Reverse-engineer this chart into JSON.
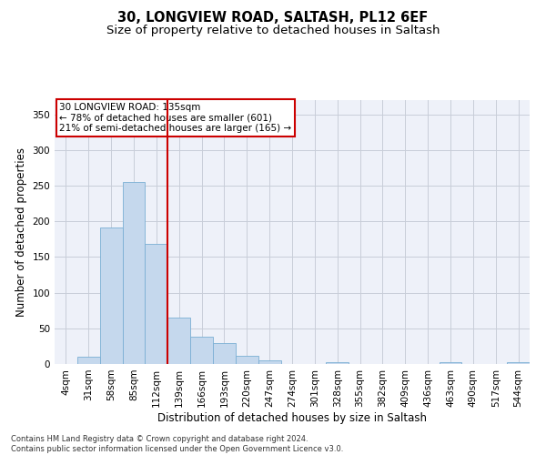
{
  "title_line1": "30, LONGVIEW ROAD, SALTASH, PL12 6EF",
  "title_line2": "Size of property relative to detached houses in Saltash",
  "xlabel": "Distribution of detached houses by size in Saltash",
  "ylabel": "Number of detached properties",
  "footnote": "Contains HM Land Registry data © Crown copyright and database right 2024.\nContains public sector information licensed under the Open Government Licence v3.0.",
  "bar_labels": [
    "4sqm",
    "31sqm",
    "58sqm",
    "85sqm",
    "112sqm",
    "139sqm",
    "166sqm",
    "193sqm",
    "220sqm",
    "247sqm",
    "274sqm",
    "301sqm",
    "328sqm",
    "355sqm",
    "382sqm",
    "409sqm",
    "436sqm",
    "463sqm",
    "490sqm",
    "517sqm",
    "544sqm"
  ],
  "bar_heights": [
    0,
    10,
    192,
    255,
    168,
    65,
    38,
    29,
    11,
    5,
    0,
    0,
    3,
    0,
    0,
    0,
    0,
    2,
    0,
    0,
    3
  ],
  "bar_color": "#c5d8ed",
  "bar_edge_color": "#7aafd4",
  "vline_color": "#cc0000",
  "annotation_text": "30 LONGVIEW ROAD: 135sqm\n← 78% of detached houses are smaller (601)\n21% of semi-detached houses are larger (165) →",
  "annotation_box_color": "white",
  "annotation_box_edge": "#cc0000",
  "ylim": [
    0,
    370
  ],
  "yticks": [
    0,
    50,
    100,
    150,
    200,
    250,
    300,
    350
  ],
  "background_color": "#eef1f9",
  "grid_color": "#c8cdd8",
  "title_fontsize": 10.5,
  "subtitle_fontsize": 9.5,
  "axis_label_fontsize": 8.5,
  "tick_fontsize": 7.5,
  "annotation_fontsize": 7.5,
  "footnote_fontsize": 6.0
}
